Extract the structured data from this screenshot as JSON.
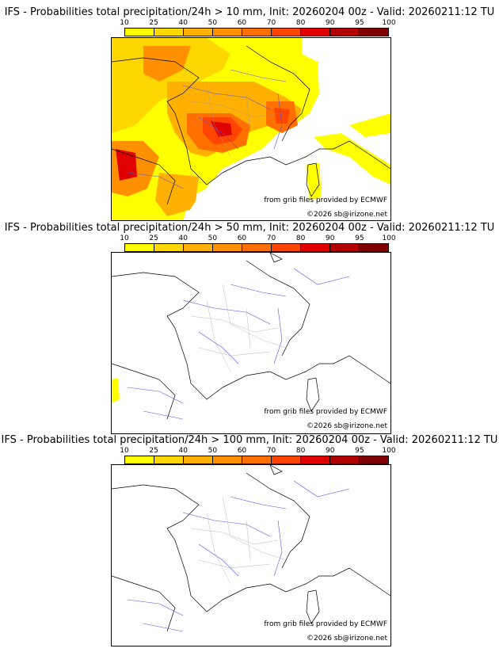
{
  "scale": {
    "ticks": [
      "10",
      "25",
      "40",
      "50",
      "60",
      "70",
      "80",
      "90",
      "95",
      "100"
    ],
    "colors": [
      "#ffff00",
      "#ffd700",
      "#ffb000",
      "#ff9000",
      "#ff7000",
      "#ff4500",
      "#e00000",
      "#b00000",
      "#800000"
    ]
  },
  "panels": [
    {
      "title": "IFS - Probabilities total precipitation/24h > 10 mm, Init: 20260204 00z - Valid: 20260211:12 TU",
      "credit1": "from grib files provided by ECMWF",
      "credit2": "©2026 sb@irizone.net"
    },
    {
      "title": "IFS - Probabilities total precipitation/24h > 50 mm, Init: 20260204 00z - Valid: 20260211:12 TU",
      "credit1": "from grib files provided by ECMWF",
      "credit2": "©2026 sb@irizone.net"
    },
    {
      "title": "IFS - Probabilities total precipitation/24h > 100 mm, Init: 20260204 00z - Valid: 20260211:12 TU",
      "credit1": "from grib files provided by ECMWF",
      "credit2": "©2026 sb@irizone.net"
    }
  ]
}
